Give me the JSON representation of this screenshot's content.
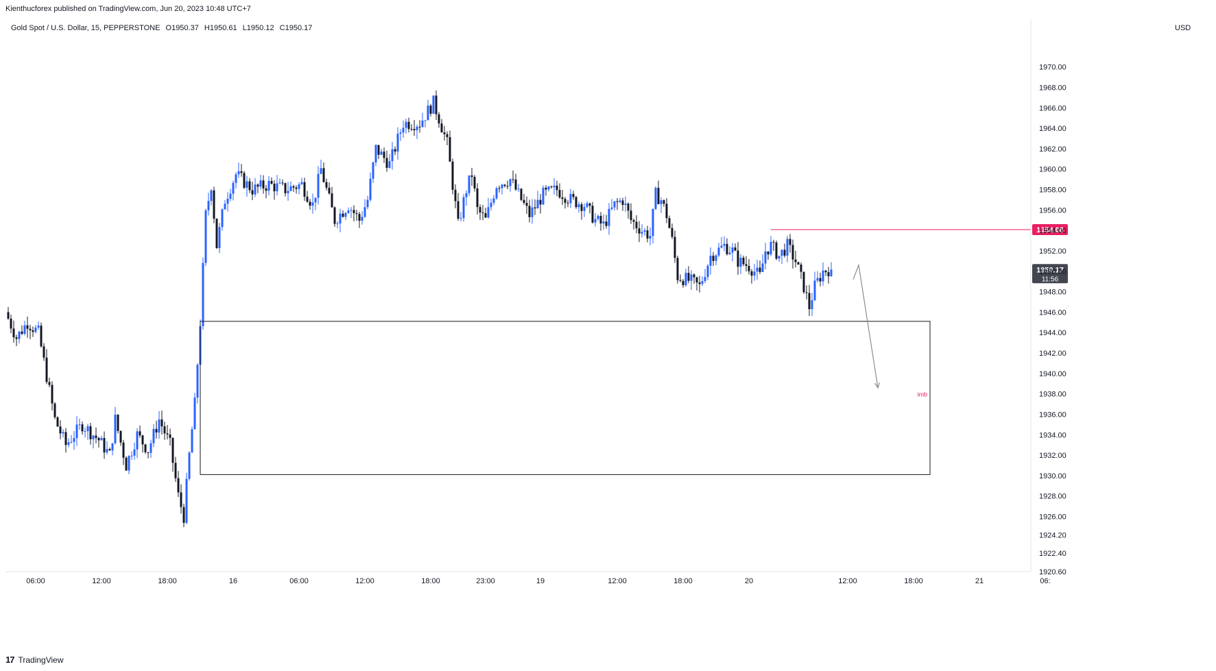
{
  "header": {
    "published_by": "Kienthucforex published on TradingView.com, Jun 20, 2023 10:48 UTC+7"
  },
  "symbol": {
    "name": "Gold Spot / U.S. Dollar, 15, PEPPERSTONE",
    "open": "O1950.37",
    "high": "H1950.61",
    "low": "L1950.12",
    "close": "C1950.17"
  },
  "currency_label": "USD",
  "footer": {
    "brand": "TradingView"
  },
  "colors": {
    "up": "#2962ff",
    "down": "#131722",
    "accent": "#e91e63",
    "price_tag": "#434651",
    "grid": "#f0f3fa",
    "box": "#131722",
    "arrow": "#8c8c8c"
  },
  "chart_data": {
    "type": "candlestick",
    "title": "",
    "ylim": [
      1920.6,
      1973.2
    ],
    "y_ticks": [
      "1970.00",
      "1968.00",
      "1966.00",
      "1964.00",
      "1962.00",
      "1960.00",
      "1958.00",
      "1956.00",
      "1954.00",
      "1952.00",
      "1950.00",
      "1948.00",
      "1946.00",
      "1944.00",
      "1942.00",
      "1940.00",
      "1938.00",
      "1936.00",
      "1934.00",
      "1932.00",
      "1930.00",
      "1928.00",
      "1926.00",
      "1924.20",
      "1922.40",
      "1920.60"
    ],
    "x_ticks": [
      {
        "label": "06:00",
        "t": 10
      },
      {
        "label": "12:00",
        "t": 34
      },
      {
        "label": "18:00",
        "t": 58
      },
      {
        "label": "16",
        "t": 82
      },
      {
        "label": "06:00",
        "t": 106
      },
      {
        "label": "12:00",
        "t": 130
      },
      {
        "label": "18:00",
        "t": 154
      },
      {
        "label": "23:00",
        "t": 174
      },
      {
        "label": "19",
        "t": 194
      },
      {
        "label": "12:00",
        "t": 222
      },
      {
        "label": "18:00",
        "t": 246
      },
      {
        "label": "20",
        "t": 270
      },
      {
        "label": "12:00",
        "t": 306
      },
      {
        "label": "18:00",
        "t": 330
      },
      {
        "label": "21",
        "t": 354
      },
      {
        "label": "06:",
        "t": 378
      }
    ],
    "anchors": [
      {
        "t": 0,
        "price": 1946.0
      },
      {
        "t": 4,
        "price": 1943.5
      },
      {
        "t": 8,
        "price": 1945.0
      },
      {
        "t": 12,
        "price": 1944.0
      },
      {
        "t": 18,
        "price": 1935.5
      },
      {
        "t": 22,
        "price": 1933.0
      },
      {
        "t": 28,
        "price": 1935.0
      },
      {
        "t": 34,
        "price": 1933.5
      },
      {
        "t": 38,
        "price": 1932.0
      },
      {
        "t": 40,
        "price": 1935.5
      },
      {
        "t": 44,
        "price": 1931.0
      },
      {
        "t": 48,
        "price": 1934.0
      },
      {
        "t": 52,
        "price": 1932.5
      },
      {
        "t": 56,
        "price": 1935.5
      },
      {
        "t": 60,
        "price": 1933.0
      },
      {
        "t": 63,
        "price": 1928.0
      },
      {
        "t": 65,
        "price": 1926.0
      },
      {
        "t": 67,
        "price": 1932.0
      },
      {
        "t": 69,
        "price": 1937.0
      },
      {
        "t": 71,
        "price": 1945.0
      },
      {
        "t": 73,
        "price": 1955.5
      },
      {
        "t": 75,
        "price": 1958.5
      },
      {
        "t": 77,
        "price": 1952.5
      },
      {
        "t": 80,
        "price": 1957.0
      },
      {
        "t": 84,
        "price": 1959.5
      },
      {
        "t": 90,
        "price": 1958.0
      },
      {
        "t": 96,
        "price": 1958.5
      },
      {
        "t": 102,
        "price": 1958.0
      },
      {
        "t": 108,
        "price": 1958.5
      },
      {
        "t": 112,
        "price": 1956.5
      },
      {
        "t": 115,
        "price": 1960.0
      },
      {
        "t": 120,
        "price": 1955.0
      },
      {
        "t": 125,
        "price": 1956.5
      },
      {
        "t": 129,
        "price": 1955.0
      },
      {
        "t": 132,
        "price": 1957.0
      },
      {
        "t": 135,
        "price": 1962.0
      },
      {
        "t": 140,
        "price": 1960.5
      },
      {
        "t": 145,
        "price": 1964.5
      },
      {
        "t": 151,
        "price": 1964.5
      },
      {
        "t": 156,
        "price": 1966.5
      },
      {
        "t": 158,
        "price": 1965.0
      },
      {
        "t": 161,
        "price": 1962.5
      },
      {
        "t": 163,
        "price": 1958.5
      },
      {
        "t": 165,
        "price": 1954.5
      },
      {
        "t": 168,
        "price": 1958.0
      },
      {
        "t": 170,
        "price": 1959.5
      },
      {
        "t": 172,
        "price": 1956.0
      },
      {
        "t": 175,
        "price": 1955.0
      },
      {
        "t": 179,
        "price": 1958.5
      },
      {
        "t": 184,
        "price": 1959.0
      },
      {
        "t": 188,
        "price": 1957.0
      },
      {
        "t": 191,
        "price": 1955.5
      },
      {
        "t": 196,
        "price": 1957.5
      },
      {
        "t": 201,
        "price": 1958.0
      },
      {
        "t": 206,
        "price": 1957.0
      },
      {
        "t": 211,
        "price": 1956.5
      },
      {
        "t": 215,
        "price": 1955.0
      },
      {
        "t": 218,
        "price": 1954.5
      },
      {
        "t": 222,
        "price": 1956.5
      },
      {
        "t": 225,
        "price": 1957.0
      },
      {
        "t": 228,
        "price": 1955.0
      },
      {
        "t": 232,
        "price": 1954.0
      },
      {
        "t": 235,
        "price": 1953.5
      },
      {
        "t": 237,
        "price": 1957.5
      },
      {
        "t": 239,
        "price": 1957.0
      },
      {
        "t": 241,
        "price": 1955.5
      },
      {
        "t": 243,
        "price": 1953.0
      },
      {
        "t": 245,
        "price": 1949.5
      },
      {
        "t": 250,
        "price": 1949.0
      },
      {
        "t": 253,
        "price": 1948.5
      },
      {
        "t": 257,
        "price": 1951.5
      },
      {
        "t": 262,
        "price": 1952.5
      },
      {
        "t": 265,
        "price": 1952.0
      },
      {
        "t": 267,
        "price": 1951.0
      },
      {
        "t": 271,
        "price": 1950.5
      },
      {
        "t": 275,
        "price": 1949.5
      },
      {
        "t": 277,
        "price": 1952.0
      },
      {
        "t": 279,
        "price": 1952.5
      },
      {
        "t": 282,
        "price": 1951.5
      },
      {
        "t": 285,
        "price": 1952.5
      },
      {
        "t": 288,
        "price": 1951.0
      },
      {
        "t": 291,
        "price": 1948.5
      },
      {
        "t": 293,
        "price": 1946.5
      },
      {
        "t": 295,
        "price": 1948.5
      },
      {
        "t": 298,
        "price": 1950.0
      },
      {
        "t": 300,
        "price": 1950.2
      }
    ],
    "candle_count": 301,
    "last": {
      "price": 1950.17,
      "countdown": "11:56"
    },
    "annotations": {
      "horizontal_line": {
        "price": 1954.08,
        "label": "1954.08",
        "from_t": 278
      },
      "zone_box": {
        "top": 1945.1,
        "bottom": 1930.1,
        "from_t": 70,
        "to_t": 336,
        "label": "imb"
      },
      "arrow": {
        "from_t": 308,
        "from_price": 1949.2,
        "peak_t": 310,
        "peak_price": 1950.6,
        "to_t": 317,
        "to_price": 1938.6
      }
    }
  }
}
